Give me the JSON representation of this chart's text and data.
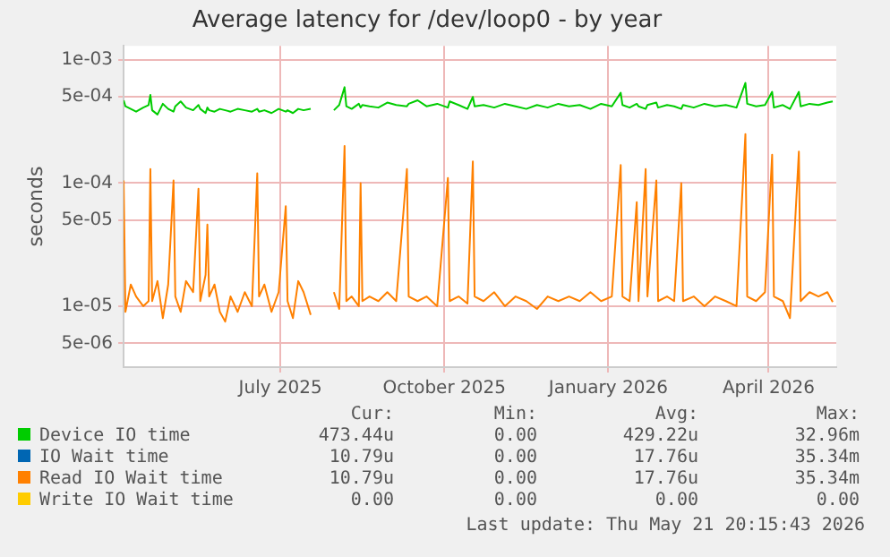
{
  "chart_data": {
    "type": "line",
    "title": "Average latency for /dev/loop0 - by year",
    "ylabel": "seconds",
    "log": "y",
    "grid": true,
    "legend": "bottom",
    "marker": "none",
    "line_style": "solid",
    "ylim": [
      3.2e-06,
      0.0013
    ],
    "yticks": [
      {
        "value": 0.001,
        "label": "1e-03"
      },
      {
        "value": 0.0005,
        "label": "5e-04"
      },
      {
        "value": 0.0001,
        "label": "1e-04"
      },
      {
        "value": 5e-05,
        "label": "5e-05"
      },
      {
        "value": 1e-05,
        "label": "1e-05"
      },
      {
        "value": 5e-06,
        "label": "5e-06"
      }
    ],
    "xlim": [
      "2025-04-19",
      "2026-05-24"
    ],
    "xticks": [
      {
        "value": "2025-07-16",
        "label": "July 2025"
      },
      {
        "value": "2025-10-16",
        "label": "October 2025"
      },
      {
        "value": "2026-01-16",
        "label": "January 2026"
      },
      {
        "value": "2026-04-16",
        "label": "April 2026"
      }
    ],
    "x": [
      "2025-04-19",
      "2025-04-20",
      "2025-04-23",
      "2025-04-26",
      "2025-04-30",
      "2025-05-03",
      "2025-05-04",
      "2025-05-05",
      "2025-05-08",
      "2025-05-11",
      "2025-05-14",
      "2025-05-17",
      "2025-05-18",
      "2025-05-21",
      "2025-05-24",
      "2025-05-28",
      "2025-05-31",
      "2025-06-01",
      "2025-06-04",
      "2025-06-05",
      "2025-06-06",
      "2025-06-09",
      "2025-06-12",
      "2025-06-15",
      "2025-06-18",
      "2025-06-22",
      "2025-06-26",
      "2025-06-30",
      "2025-07-03",
      "2025-07-04",
      "2025-07-07",
      "2025-07-11",
      "2025-07-15",
      "2025-07-19",
      "2025-07-20",
      "2025-07-23",
      "2025-07-26",
      "2025-07-29",
      "2025-08-02",
      "2025-08-08",
      "2025-08-15",
      "2025-08-18",
      "2025-08-21",
      "2025-08-22",
      "2025-08-25",
      "2025-08-29",
      "2025-08-30",
      "2025-08-31",
      "2025-09-04",
      "2025-09-09",
      "2025-09-14",
      "2025-09-19",
      "2025-09-25",
      "2025-09-26",
      "2025-10-01",
      "2025-10-06",
      "2025-10-12",
      "2025-10-18",
      "2025-10-19",
      "2025-10-24",
      "2025-10-29",
      "2025-11-01",
      "2025-11-02",
      "2025-11-07",
      "2025-11-13",
      "2025-11-19",
      "2025-11-25",
      "2025-12-01",
      "2025-12-07",
      "2025-12-13",
      "2025-12-19",
      "2025-12-25",
      "2025-12-31",
      "2026-01-06",
      "2026-01-12",
      "2026-01-18",
      "2026-01-23",
      "2026-01-24",
      "2026-01-28",
      "2026-02-01",
      "2026-02-02",
      "2026-02-06",
      "2026-02-07",
      "2026-02-12",
      "2026-02-13",
      "2026-02-18",
      "2026-02-22",
      "2026-02-26",
      "2026-02-27",
      "2026-03-05",
      "2026-03-11",
      "2026-03-17",
      "2026-03-23",
      "2026-03-29",
      "2026-04-03",
      "2026-04-04",
      "2026-04-09",
      "2026-04-14",
      "2026-04-18",
      "2026-04-19",
      "2026-04-24",
      "2026-04-28",
      "2026-05-03",
      "2026-05-04",
      "2026-05-09",
      "2026-05-14",
      "2026-05-19",
      "2026-05-22"
    ],
    "series": [
      {
        "name": "Device IO time",
        "color": "#00cc00",
        "values": [
          0.00047,
          0.00042,
          0.0004,
          0.00038,
          0.00041,
          0.00043,
          0.00052,
          0.00039,
          0.00036,
          0.00044,
          0.0004,
          0.00038,
          0.00042,
          0.00046,
          0.00041,
          0.00039,
          0.00043,
          0.0004,
          0.00037,
          0.00041,
          0.00039,
          0.00038,
          0.0004,
          0.00039,
          0.00038,
          0.0004,
          0.00039,
          0.00038,
          0.0004,
          0.00038,
          0.00039,
          0.00037,
          0.0004,
          0.00038,
          0.00039,
          0.00037,
          0.0004,
          0.00039,
          0.0004,
          null,
          0.00039,
          0.00043,
          0.0006,
          0.00042,
          0.0004,
          0.00044,
          0.00041,
          0.00043,
          0.00042,
          0.00041,
          0.00045,
          0.00043,
          0.00042,
          0.00044,
          0.00047,
          0.00042,
          0.00044,
          0.00041,
          0.00046,
          0.00043,
          0.0004,
          0.0005,
          0.00042,
          0.00043,
          0.00041,
          0.00044,
          0.00042,
          0.0004,
          0.00043,
          0.00041,
          0.00044,
          0.00042,
          0.00043,
          0.0004,
          0.00044,
          0.00042,
          0.00054,
          0.00043,
          0.00041,
          0.00044,
          0.00042,
          0.0004,
          0.00043,
          0.00045,
          0.00041,
          0.00043,
          0.00042,
          0.0004,
          0.00043,
          0.00041,
          0.00044,
          0.00042,
          0.00043,
          0.00041,
          0.00065,
          0.00044,
          0.00042,
          0.00043,
          0.00055,
          0.00041,
          0.00043,
          0.0004,
          0.00055,
          0.00042,
          0.00044,
          0.00043,
          0.00045,
          0.00046
        ]
      },
      {
        "name": "IO Wait time",
        "color": "#0066b3",
        "values": [
          null,
          null,
          null,
          null,
          null,
          null,
          null,
          null,
          null,
          null,
          null,
          null,
          null,
          null,
          null,
          null,
          null,
          null,
          null,
          null,
          null,
          null,
          null,
          null,
          null,
          null,
          null,
          null,
          null,
          null,
          null,
          null,
          null,
          null,
          null,
          null,
          null,
          null,
          null,
          null,
          null,
          null,
          null,
          null,
          null,
          null,
          null,
          null,
          null,
          null,
          null,
          null,
          null,
          null,
          null,
          null,
          null,
          null,
          null,
          null,
          null,
          null,
          null,
          null,
          null,
          null,
          null,
          null,
          null,
          null,
          null,
          null,
          null,
          null,
          null,
          null,
          null,
          null,
          null,
          null,
          null,
          null,
          null,
          null,
          null,
          null,
          null,
          null,
          null,
          null,
          null,
          null,
          null,
          null,
          null,
          null,
          null,
          null,
          null,
          null,
          null,
          null,
          null,
          null,
          null,
          null,
          null,
          null
        ]
      },
      {
        "name": "Read IO Wait time",
        "color": "#ff8000",
        "values": [
          0.000105,
          9e-06,
          1.5e-05,
          1.2e-05,
          1e-05,
          1.1e-05,
          0.00013,
          1.1e-05,
          1.6e-05,
          8e-06,
          1.5e-05,
          0.000105,
          1.2e-05,
          9e-06,
          1.6e-05,
          1.3e-05,
          9e-05,
          1.1e-05,
          1.8e-05,
          4.6e-05,
          1.2e-05,
          1.5e-05,
          9e-06,
          7.5e-06,
          1.2e-05,
          9e-06,
          1.3e-05,
          1e-05,
          0.00012,
          1.2e-05,
          1.5e-05,
          9e-06,
          1.3e-05,
          6.5e-05,
          1.1e-05,
          8e-06,
          1.6e-05,
          1.3e-05,
          8.5e-06,
          null,
          1.3e-05,
          9.5e-06,
          0.0002,
          1.1e-05,
          1.2e-05,
          1e-05,
          0.0001,
          1.1e-05,
          1.2e-05,
          1.1e-05,
          1.3e-05,
          1.1e-05,
          0.00013,
          1.2e-05,
          1.1e-05,
          1.2e-05,
          1e-05,
          0.00011,
          1.1e-05,
          1.2e-05,
          1.05e-05,
          0.00015,
          1.2e-05,
          1.1e-05,
          1.3e-05,
          1e-05,
          1.2e-05,
          1.1e-05,
          9.5e-06,
          1.2e-05,
          1.1e-05,
          1.2e-05,
          1.1e-05,
          1.3e-05,
          1.1e-05,
          1.2e-05,
          0.00014,
          1.2e-05,
          1.1e-05,
          7e-05,
          1.1e-05,
          0.00013,
          1.2e-05,
          0.000105,
          1.1e-05,
          1.2e-05,
          1.1e-05,
          0.0001,
          1.1e-05,
          1.2e-05,
          1e-05,
          1.2e-05,
          1.1e-05,
          1e-05,
          0.00025,
          1.2e-05,
          1.1e-05,
          1.3e-05,
          0.00017,
          1.2e-05,
          1.1e-05,
          8e-06,
          0.00018,
          1.1e-05,
          1.3e-05,
          1.2e-05,
          1.3e-05,
          1.08e-05
        ]
      },
      {
        "name": "Write IO Wait time",
        "color": "#ffcc00",
        "values": [
          null,
          null,
          null,
          null,
          null,
          null,
          null,
          null,
          null,
          null,
          null,
          null,
          null,
          null,
          null,
          null,
          null,
          null,
          null,
          null,
          null,
          null,
          null,
          null,
          null,
          null,
          null,
          null,
          null,
          null,
          null,
          null,
          null,
          null,
          null,
          null,
          null,
          null,
          null,
          null,
          null,
          null,
          null,
          null,
          null,
          null,
          null,
          null,
          null,
          null,
          null,
          null,
          null,
          null,
          null,
          null,
          null,
          null,
          null,
          null,
          null,
          null,
          null,
          null,
          null,
          null,
          null,
          null,
          null,
          null,
          null,
          null,
          null,
          null,
          null,
          null,
          null,
          null,
          null,
          null,
          null,
          null,
          null,
          null,
          null,
          null,
          null,
          null,
          null,
          null,
          null,
          null,
          null,
          null,
          null,
          null,
          null,
          null,
          null,
          null,
          null,
          null,
          null,
          null,
          null,
          null,
          null,
          null
        ]
      }
    ],
    "annotations": [
      "Cur:",
      "Min:",
      "Avg:",
      "Max:",
      "473.44u",
      "0.00",
      "429.22u",
      "32.96m",
      "10.79u",
      "0.00",
      "17.76u",
      "35.34m",
      "10.79u",
      "0.00",
      "17.76u",
      "35.34m",
      "0.00",
      "0.00",
      "0.00",
      "0.00",
      "Last update: Thu May 21 20:15:43 2026"
    ]
  }
}
